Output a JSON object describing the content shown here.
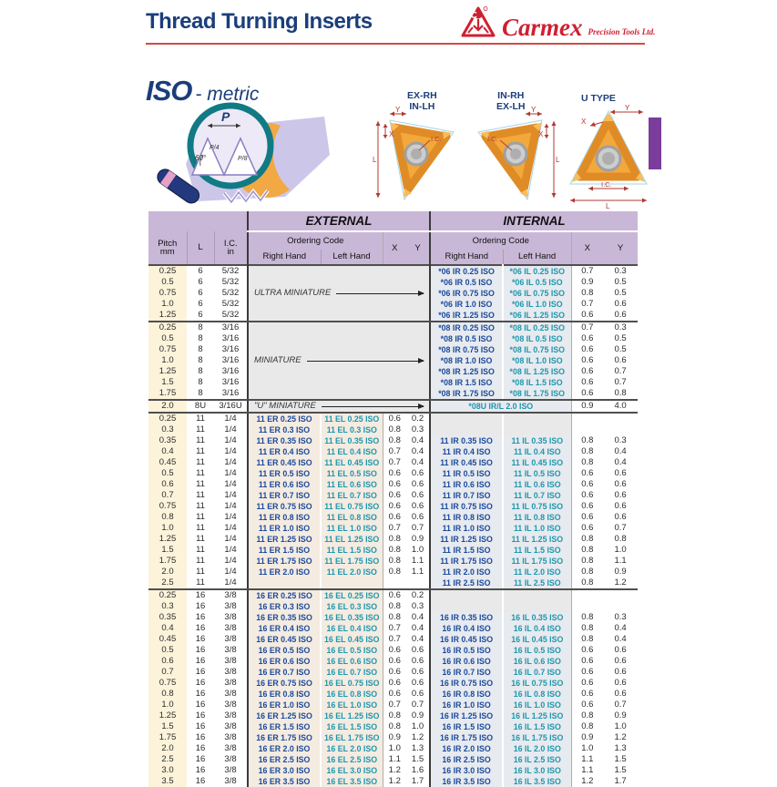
{
  "page": {
    "title": "Thread Turning Inserts",
    "brand": {
      "name": "Carmex",
      "tagline": "Precision Tools Ltd."
    },
    "section": {
      "iso": "ISO",
      "metric": "- metric"
    }
  },
  "profile": {
    "p": "P",
    "p4": "P/4",
    "p8": "P/8",
    "angle": "60°"
  },
  "diagrams": {
    "insert_ex": {
      "line1": "EX-RH",
      "line2": "IN-LH"
    },
    "insert_in": {
      "line1": "IN-RH",
      "line2": "EX-LH"
    },
    "insert_u": {
      "label": "U TYPE"
    },
    "dims": {
      "l": "L",
      "x": "X",
      "y": "Y",
      "ic": "I.C."
    }
  },
  "table": {
    "headers": {
      "pitch": "Pitch",
      "pitch_unit": "mm",
      "l": "L",
      "ic": "I.C.",
      "ic_unit": "in",
      "external": "EXTERNAL",
      "internal": "INTERNAL",
      "ordering_code": "Ordering Code",
      "right_hand": "Right Hand",
      "left_hand": "Left Hand",
      "x": "X",
      "y": "Y"
    },
    "groups": [
      {
        "ext_label": "ULTRA MINIATURE",
        "rows": [
          {
            "pitch": "0.25",
            "l": "6",
            "ic": "5/32",
            "int_rh": "*06 IR 0.25 ISO",
            "int_lh": "*06 IL 0.25 ISO",
            "int_x": "0.7",
            "int_y": "0.3"
          },
          {
            "pitch": "0.5",
            "l": "6",
            "ic": "5/32",
            "int_rh": "*06 IR 0.5 ISO",
            "int_lh": "*06 IL 0.5 ISO",
            "int_x": "0.9",
            "int_y": "0.5"
          },
          {
            "pitch": "0.75",
            "l": "6",
            "ic": "5/32",
            "int_rh": "*06 IR 0.75 ISO",
            "int_lh": "*06 IL 0.75 ISO",
            "int_x": "0.8",
            "int_y": "0.5"
          },
          {
            "pitch": "1.0",
            "l": "6",
            "ic": "5/32",
            "int_rh": "*06 IR 1.0 ISO",
            "int_lh": "*06 IL 1.0 ISO",
            "int_x": "0.7",
            "int_y": "0.6"
          },
          {
            "pitch": "1.25",
            "l": "6",
            "ic": "5/32",
            "int_rh": "*06 IR 1.25 ISO",
            "int_lh": "*06 IL 1.25 ISO",
            "int_x": "0.6",
            "int_y": "0.6"
          }
        ]
      },
      {
        "ext_label": "MINIATURE",
        "rows": [
          {
            "pitch": "0.25",
            "l": "8",
            "ic": "3/16",
            "int_rh": "*08 IR 0.25 ISO",
            "int_lh": "*08 IL 0.25 ISO",
            "int_x": "0.7",
            "int_y": "0.3"
          },
          {
            "pitch": "0.5",
            "l": "8",
            "ic": "3/16",
            "int_rh": "*08 IR 0.5 ISO",
            "int_lh": "*08 IL 0.5 ISO",
            "int_x": "0.6",
            "int_y": "0.5"
          },
          {
            "pitch": "0.75",
            "l": "8",
            "ic": "3/16",
            "int_rh": "*08 IR 0.75 ISO",
            "int_lh": "*08 IL 0.75 ISO",
            "int_x": "0.6",
            "int_y": "0.5"
          },
          {
            "pitch": "1.0",
            "l": "8",
            "ic": "3/16",
            "int_rh": "*08 IR 1.0 ISO",
            "int_lh": "*08 IL 1.0 ISO",
            "int_x": "0.6",
            "int_y": "0.6"
          },
          {
            "pitch": "1.25",
            "l": "8",
            "ic": "3/16",
            "int_rh": "*08 IR 1.25 ISO",
            "int_lh": "*08 IL 1.25 ISO",
            "int_x": "0.6",
            "int_y": "0.7"
          },
          {
            "pitch": "1.5",
            "l": "8",
            "ic": "3/16",
            "int_rh": "*08 IR 1.5 ISO",
            "int_lh": "*08 IL 1.5 ISO",
            "int_x": "0.6",
            "int_y": "0.7"
          },
          {
            "pitch": "1.75",
            "l": "8",
            "ic": "3/16",
            "int_rh": "*08 IR 1.75 ISO",
            "int_lh": "*08 IL 1.75 ISO",
            "int_x": "0.6",
            "int_y": "0.8"
          }
        ]
      },
      {
        "ext_label": "\"U\" MINIATURE",
        "rows": [
          {
            "pitch": "2.0",
            "l": "8U",
            "ic": "3/16U",
            "int_span": "*08U IR/L 2.0 ISO",
            "int_x": "0.9",
            "int_y": "4.0"
          }
        ]
      },
      {
        "rows": [
          {
            "pitch": "0.25",
            "l": "11",
            "ic": "1/4",
            "ext_rh": "11 ER 0.25 ISO",
            "ext_lh": "11 EL 0.25 ISO",
            "ext_x": "0.6",
            "ext_y": "0.2"
          },
          {
            "pitch": "0.3",
            "l": "11",
            "ic": "1/4",
            "ext_rh": "11 ER 0.3 ISO",
            "ext_lh": "11 EL 0.3 ISO",
            "ext_x": "0.8",
            "ext_y": "0.3"
          },
          {
            "pitch": "0.35",
            "l": "11",
            "ic": "1/4",
            "ext_rh": "11 ER 0.35 ISO",
            "ext_lh": "11 EL 0.35 ISO",
            "ext_x": "0.8",
            "ext_y": "0.4",
            "int_rh": "11 IR 0.35 ISO",
            "int_lh": "11 IL 0.35 ISO",
            "int_x": "0.8",
            "int_y": "0.3"
          },
          {
            "pitch": "0.4",
            "l": "11",
            "ic": "1/4",
            "ext_rh": "11 ER 0.4 ISO",
            "ext_lh": "11 EL 0.4 ISO",
            "ext_x": "0.7",
            "ext_y": "0.4",
            "int_rh": "11 IR 0.4 ISO",
            "int_lh": "11 IL 0.4 ISO",
            "int_x": "0.8",
            "int_y": "0.4"
          },
          {
            "pitch": "0.45",
            "l": "11",
            "ic": "1/4",
            "ext_rh": "11 ER 0.45 ISO",
            "ext_lh": "11 EL 0.45 ISO",
            "ext_x": "0.7",
            "ext_y": "0.4",
            "int_rh": "11 IR 0.45 ISO",
            "int_lh": "11 IL 0.45 ISO",
            "int_x": "0.8",
            "int_y": "0.4"
          },
          {
            "pitch": "0.5",
            "l": "11",
            "ic": "1/4",
            "ext_rh": "11 ER 0.5 ISO",
            "ext_lh": "11 EL 0.5 ISO",
            "ext_x": "0.6",
            "ext_y": "0.6",
            "int_rh": "11 IR 0.5 ISO",
            "int_lh": "11 IL 0.5 ISO",
            "int_x": "0.6",
            "int_y": "0.6"
          },
          {
            "pitch": "0.6",
            "l": "11",
            "ic": "1/4",
            "ext_rh": "11 ER 0.6 ISO",
            "ext_lh": "11 EL 0.6 ISO",
            "ext_x": "0.6",
            "ext_y": "0.6",
            "int_rh": "11 IR 0.6 ISO",
            "int_lh": "11 IL 0.6 ISO",
            "int_x": "0.6",
            "int_y": "0.6"
          },
          {
            "pitch": "0.7",
            "l": "11",
            "ic": "1/4",
            "ext_rh": "11 ER 0.7 ISO",
            "ext_lh": "11 EL 0.7 ISO",
            "ext_x": "0.6",
            "ext_y": "0.6",
            "int_rh": "11 IR 0.7 ISO",
            "int_lh": "11 IL 0.7 ISO",
            "int_x": "0.6",
            "int_y": "0.6"
          },
          {
            "pitch": "0.75",
            "l": "11",
            "ic": "1/4",
            "ext_rh": "11 ER 0.75 ISO",
            "ext_lh": "11 EL 0.75 ISO",
            "ext_x": "0.6",
            "ext_y": "0.6",
            "int_rh": "11 IR 0.75 ISO",
            "int_lh": "11 IL 0.75 ISO",
            "int_x": "0.6",
            "int_y": "0.6"
          },
          {
            "pitch": "0.8",
            "l": "11",
            "ic": "1/4",
            "ext_rh": "11 ER 0.8 ISO",
            "ext_lh": "11 EL 0.8 ISO",
            "ext_x": "0.6",
            "ext_y": "0.6",
            "int_rh": "11 IR 0.8 ISO",
            "int_lh": "11 IL 0.8 ISO",
            "int_x": "0.6",
            "int_y": "0.6"
          },
          {
            "pitch": "1.0",
            "l": "11",
            "ic": "1/4",
            "ext_rh": "11 ER 1.0 ISO",
            "ext_lh": "11 EL 1.0 ISO",
            "ext_x": "0.7",
            "ext_y": "0.7",
            "int_rh": "11 IR 1.0 ISO",
            "int_lh": "11 IL 1.0 ISO",
            "int_x": "0.6",
            "int_y": "0.7"
          },
          {
            "pitch": "1.25",
            "l": "11",
            "ic": "1/4",
            "ext_rh": "11 ER 1.25 ISO",
            "ext_lh": "11 EL 1.25 ISO",
            "ext_x": "0.8",
            "ext_y": "0.9",
            "int_rh": "11 IR 1.25 ISO",
            "int_lh": "11 IL 1.25 ISO",
            "int_x": "0.8",
            "int_y": "0.8"
          },
          {
            "pitch": "1.5",
            "l": "11",
            "ic": "1/4",
            "ext_rh": "11 ER 1.5 ISO",
            "ext_lh": "11 EL 1.5 ISO",
            "ext_x": "0.8",
            "ext_y": "1.0",
            "int_rh": "11 IR 1.5 ISO",
            "int_lh": "11 IL 1.5 ISO",
            "int_x": "0.8",
            "int_y": "1.0"
          },
          {
            "pitch": "1.75",
            "l": "11",
            "ic": "1/4",
            "ext_rh": "11 ER 1.75 ISO",
            "ext_lh": "11 EL 1.75 ISO",
            "ext_x": "0.8",
            "ext_y": "1.1",
            "int_rh": "11 IR 1.75 ISO",
            "int_lh": "11 IL 1.75 ISO",
            "int_x": "0.8",
            "int_y": "1.1"
          },
          {
            "pitch": "2.0",
            "l": "11",
            "ic": "1/4",
            "ext_rh": "11 ER 2.0 ISO",
            "ext_lh": "11 EL 2.0 ISO",
            "ext_x": "0.8",
            "ext_y": "1.1",
            "int_rh": "11 IR 2.0 ISO",
            "int_lh": "11 IL 2.0 ISO",
            "int_x": "0.8",
            "int_y": "0.9"
          },
          {
            "pitch": "2.5",
            "l": "11",
            "ic": "1/4",
            "ext_blank": true,
            "int_rh": "11 IR 2.5 ISO",
            "int_lh": "11 IL 2.5 ISO",
            "int_x": "0.8",
            "int_y": "1.2"
          }
        ]
      },
      {
        "rows": [
          {
            "pitch": "0.25",
            "l": "16",
            "ic": "3/8",
            "ext_rh": "16 ER 0.25 ISO",
            "ext_lh": "16 EL 0.25 ISO",
            "ext_x": "0.6",
            "ext_y": "0.2"
          },
          {
            "pitch": "0.3",
            "l": "16",
            "ic": "3/8",
            "ext_rh": "16 ER 0.3 ISO",
            "ext_lh": "16 EL 0.3 ISO",
            "ext_x": "0.8",
            "ext_y": "0.3"
          },
          {
            "pitch": "0.35",
            "l": "16",
            "ic": "3/8",
            "ext_rh": "16 ER 0.35 ISO",
            "ext_lh": "16 EL 0.35 ISO",
            "ext_x": "0.8",
            "ext_y": "0.4",
            "int_rh": "16 IR 0.35 ISO",
            "int_lh": "16 IL 0.35 ISO",
            "int_x": "0.8",
            "int_y": "0.3"
          },
          {
            "pitch": "0.4",
            "l": "16",
            "ic": "3/8",
            "ext_rh": "16 ER 0.4 ISO",
            "ext_lh": "16 EL 0.4 ISO",
            "ext_x": "0.7",
            "ext_y": "0.4",
            "int_rh": "16 IR 0.4 ISO",
            "int_lh": "16 IL 0.4 ISO",
            "int_x": "0.8",
            "int_y": "0.4"
          },
          {
            "pitch": "0.45",
            "l": "16",
            "ic": "3/8",
            "ext_rh": "16 ER 0.45 ISO",
            "ext_lh": "16 EL 0.45 ISO",
            "ext_x": "0.7",
            "ext_y": "0.4",
            "int_rh": "16 IR 0.45 ISO",
            "int_lh": "16 IL 0.45 ISO",
            "int_x": "0.8",
            "int_y": "0.4"
          },
          {
            "pitch": "0.5",
            "l": "16",
            "ic": "3/8",
            "ext_rh": "16 ER 0.5 ISO",
            "ext_lh": "16 EL 0.5 ISO",
            "ext_x": "0.6",
            "ext_y": "0.6",
            "int_rh": "16 IR 0.5 ISO",
            "int_lh": "16 IL 0.5 ISO",
            "int_x": "0.6",
            "int_y": "0.6"
          },
          {
            "pitch": "0.6",
            "l": "16",
            "ic": "3/8",
            "ext_rh": "16 ER 0.6 ISO",
            "ext_lh": "16 EL 0.6 ISO",
            "ext_x": "0.6",
            "ext_y": "0.6",
            "int_rh": "16 IR 0.6 ISO",
            "int_lh": "16 IL 0.6 ISO",
            "int_x": "0.6",
            "int_y": "0.6"
          },
          {
            "pitch": "0.7",
            "l": "16",
            "ic": "3/8",
            "ext_rh": "16 ER 0.7 ISO",
            "ext_lh": "16 EL 0.7 ISO",
            "ext_x": "0.6",
            "ext_y": "0.6",
            "int_rh": "16 IR 0.7 ISO",
            "int_lh": "16 IL 0.7 ISO",
            "int_x": "0.6",
            "int_y": "0.6"
          },
          {
            "pitch": "0.75",
            "l": "16",
            "ic": "3/8",
            "ext_rh": "16 ER 0.75 ISO",
            "ext_lh": "16 EL 0.75 ISO",
            "ext_x": "0.6",
            "ext_y": "0.6",
            "int_rh": "16 IR 0.75 ISO",
            "int_lh": "16 IL 0.75 ISO",
            "int_x": "0.6",
            "int_y": "0.6"
          },
          {
            "pitch": "0.8",
            "l": "16",
            "ic": "3/8",
            "ext_rh": "16 ER 0.8 ISO",
            "ext_lh": "16 EL 0.8 ISO",
            "ext_x": "0.6",
            "ext_y": "0.6",
            "int_rh": "16 IR 0.8 ISO",
            "int_lh": "16 IL 0.8 ISO",
            "int_x": "0.6",
            "int_y": "0.6"
          },
          {
            "pitch": "1.0",
            "l": "16",
            "ic": "3/8",
            "ext_rh": "16 ER 1.0 ISO",
            "ext_lh": "16 EL 1.0 ISO",
            "ext_x": "0.7",
            "ext_y": "0.7",
            "int_rh": "16 IR 1.0 ISO",
            "int_lh": "16 IL 1.0 ISO",
            "int_x": "0.6",
            "int_y": "0.7"
          },
          {
            "pitch": "1.25",
            "l": "16",
            "ic": "3/8",
            "ext_rh": "16 ER 1.25 ISO",
            "ext_lh": "16 EL 1.25 ISO",
            "ext_x": "0.8",
            "ext_y": "0.9",
            "int_rh": "16 IR 1.25 ISO",
            "int_lh": "16 IL 1.25 ISO",
            "int_x": "0.8",
            "int_y": "0.9"
          },
          {
            "pitch": "1.5",
            "l": "16",
            "ic": "3/8",
            "ext_rh": "16 ER 1.5 ISO",
            "ext_lh": "16 EL 1.5 ISO",
            "ext_x": "0.8",
            "ext_y": "1.0",
            "int_rh": "16 IR 1.5 ISO",
            "int_lh": "16 IL 1.5 ISO",
            "int_x": "0.8",
            "int_y": "1.0"
          },
          {
            "pitch": "1.75",
            "l": "16",
            "ic": "3/8",
            "ext_rh": "16 ER 1.75 ISO",
            "ext_lh": "16 EL 1.75 ISO",
            "ext_x": "0.9",
            "ext_y": "1.2",
            "int_rh": "16 IR 1.75 ISO",
            "int_lh": "16 IL 1.75 ISO",
            "int_x": "0.9",
            "int_y": "1.2"
          },
          {
            "pitch": "2.0",
            "l": "16",
            "ic": "3/8",
            "ext_rh": "16 ER 2.0 ISO",
            "ext_lh": "16 EL 2.0 ISO",
            "ext_x": "1.0",
            "ext_y": "1.3",
            "int_rh": "16 IR 2.0 ISO",
            "int_lh": "16 IL 2.0 ISO",
            "int_x": "1.0",
            "int_y": "1.3"
          },
          {
            "pitch": "2.5",
            "l": "16",
            "ic": "3/8",
            "ext_rh": "16 ER 2.5 ISO",
            "ext_lh": "16 EL 2.5 ISO",
            "ext_x": "1.1",
            "ext_y": "1.5",
            "int_rh": "16 IR 2.5 ISO",
            "int_lh": "16 IL 2.5 ISO",
            "int_x": "1.1",
            "int_y": "1.5"
          },
          {
            "pitch": "3.0",
            "l": "16",
            "ic": "3/8",
            "ext_rh": "16 ER 3.0 ISO",
            "ext_lh": "16 EL 3.0 ISO",
            "ext_x": "1.2",
            "ext_y": "1.6",
            "int_rh": "16 IR 3.0 ISO",
            "int_lh": "16 IL 3.0 ISO",
            "int_x": "1.1",
            "int_y": "1.5"
          },
          {
            "pitch": "3.5",
            "l": "16",
            "ic": "3/8",
            "ext_rh": "16 ER 3.5 ISO",
            "ext_lh": "16 EL 3.5 ISO",
            "ext_x": "1.2",
            "ext_y": "1.7",
            "int_rh": "16 IR 3.5 ISO",
            "int_lh": "16 IL 3.5 ISO",
            "int_x": "1.2",
            "int_y": "1.7"
          }
        ]
      }
    ]
  },
  "colors": {
    "accent_navy": "#1b3e7a",
    "brand_red": "#cf2030",
    "code_right": "#1b4a9b",
    "code_left": "#1e97ad",
    "header_lavender": "#c9b7d7",
    "tab_purple": "#7a3d9b"
  }
}
